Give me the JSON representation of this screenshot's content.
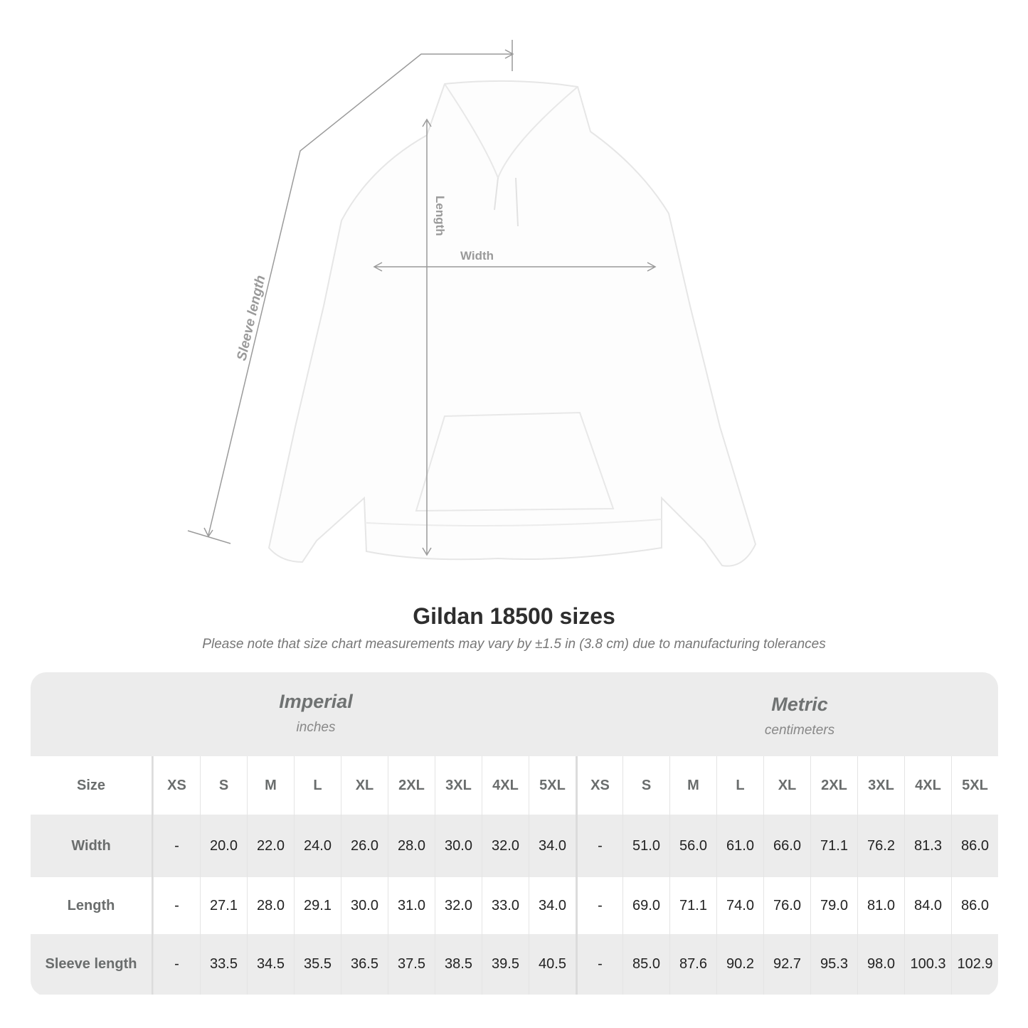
{
  "illustration": {
    "labels": {
      "length": "Length",
      "width": "Width",
      "sleeve": "Sleeve length"
    },
    "line_color": "#9a9a9a"
  },
  "title": "Gildan 18500 sizes",
  "subtitle": "Please note that size chart measurements may vary by ±1.5 in (3.8 cm) due to manufacturing tolerances",
  "units": {
    "imperial": {
      "name": "Imperial",
      "sub": "inches"
    },
    "metric": {
      "name": "Metric",
      "sub": "centimeters"
    }
  },
  "table": {
    "size_label": "Size",
    "sizes": [
      "XS",
      "S",
      "M",
      "L",
      "XL",
      "2XL",
      "3XL",
      "4XL",
      "5XL"
    ],
    "rows": [
      {
        "label": "Width",
        "imperial": [
          "-",
          "20.0",
          "22.0",
          "24.0",
          "26.0",
          "28.0",
          "30.0",
          "32.0",
          "34.0"
        ],
        "metric": [
          "-",
          "51.0",
          "56.0",
          "61.0",
          "66.0",
          "71.1",
          "76.2",
          "81.3",
          "86.0"
        ]
      },
      {
        "label": "Length",
        "imperial": [
          "-",
          "27.1",
          "28.0",
          "29.1",
          "30.0",
          "31.0",
          "32.0",
          "33.0",
          "34.0"
        ],
        "metric": [
          "-",
          "69.0",
          "71.1",
          "74.0",
          "76.0",
          "79.0",
          "81.0",
          "84.0",
          "86.0"
        ]
      },
      {
        "label": "Sleeve length",
        "imperial": [
          "-",
          "33.5",
          "34.5",
          "35.5",
          "36.5",
          "37.5",
          "38.5",
          "39.5",
          "40.5"
        ],
        "metric": [
          "-",
          "85.0",
          "87.6",
          "90.2",
          "92.7",
          "95.3",
          "98.0",
          "100.3",
          "102.9"
        ]
      }
    ]
  },
  "colors": {
    "band": "#ececec",
    "label": "#6a6d6d"
  }
}
